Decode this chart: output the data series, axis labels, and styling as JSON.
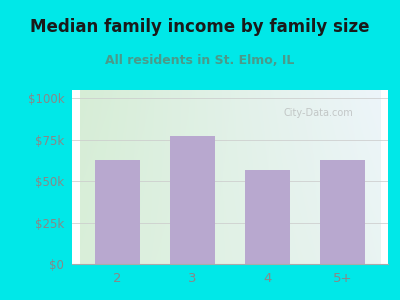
{
  "categories": [
    "2",
    "3",
    "4",
    "5+"
  ],
  "values": [
    63000,
    77000,
    57000,
    63000
  ],
  "bar_color": "#b8a8cf",
  "title": "Median family income by family size",
  "subtitle": "All residents in St. Elmo, IL",
  "subtitle_color": "#4a9a8a",
  "title_color": "#1a1a1a",
  "figure_bg": "#00e8e8",
  "plot_bg_top_left": "#d5edd5",
  "plot_bg_top_right": "#eef6f8",
  "plot_bg_bottom": "#e0f0e0",
  "yticks": [
    0,
    25000,
    50000,
    75000,
    100000
  ],
  "ytick_labels": [
    "$0",
    "$25k",
    "$50k",
    "$75k",
    "$100k"
  ],
  "ylim": [
    0,
    105000
  ],
  "watermark": "City-Data.com",
  "tick_label_color": "#888888",
  "grid_color": "#cccccc",
  "title_fontsize": 12,
  "subtitle_fontsize": 9
}
